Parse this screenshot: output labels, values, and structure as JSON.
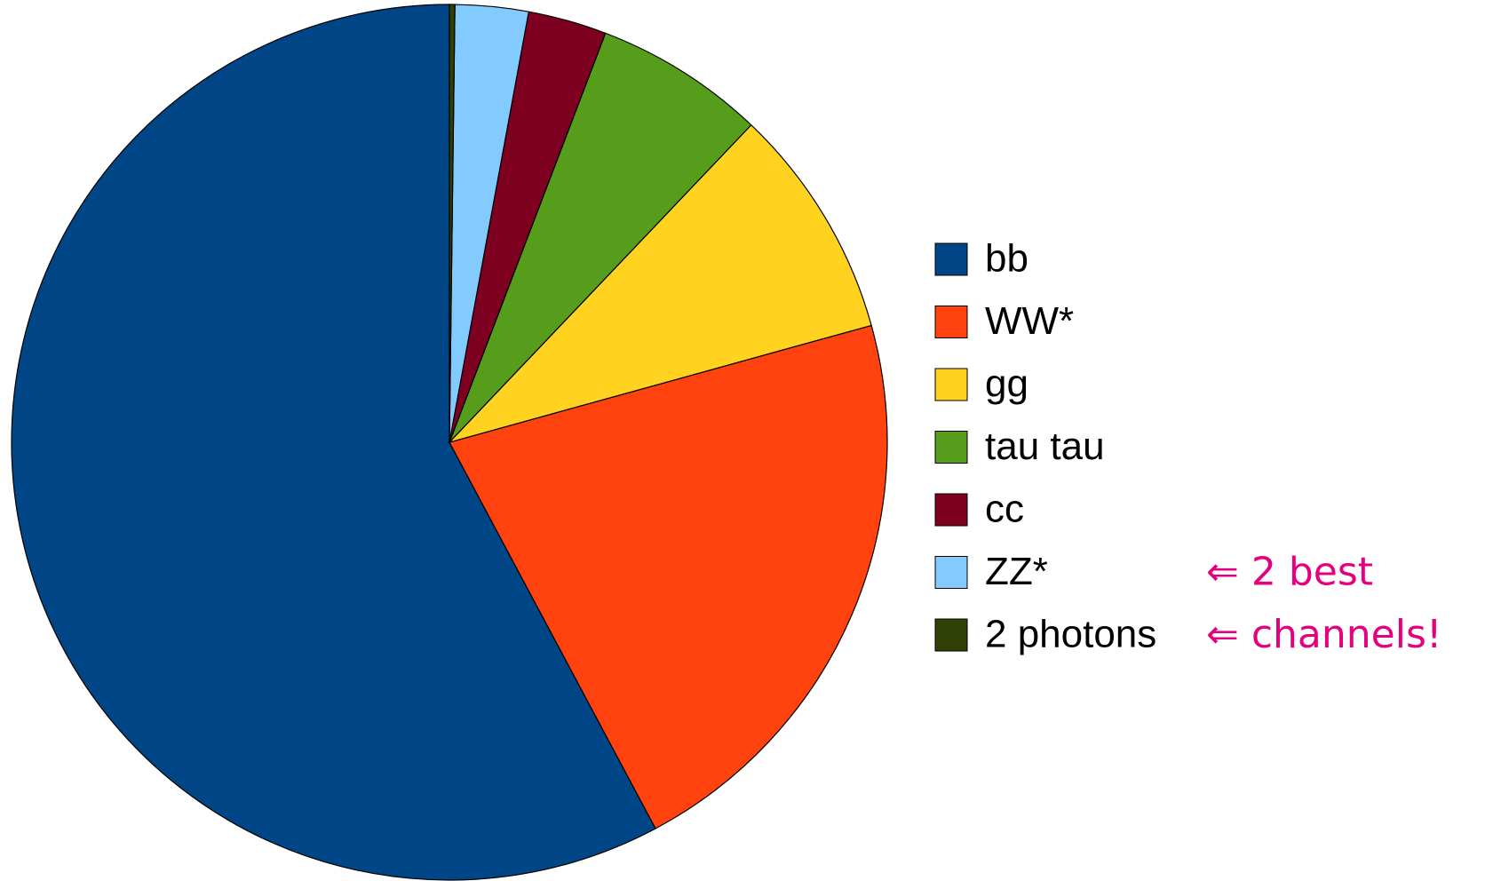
{
  "chart_data": {
    "type": "pie",
    "categories": [
      "bb",
      "WW*",
      "gg",
      "tau tau",
      "cc",
      "ZZ*",
      "2 photons"
    ],
    "values": [
      57.8,
      21.5,
      8.6,
      6.3,
      2.9,
      2.7,
      0.2
    ],
    "colors": [
      "#004586",
      "#ff420e",
      "#ffd320",
      "#579d1c",
      "#7e0021",
      "#83caff",
      "#314004"
    ],
    "legend": "right",
    "annotations": [
      "⇐ 2 best",
      "⇐ channels!"
    ],
    "annotation_color": "#e6007e"
  }
}
